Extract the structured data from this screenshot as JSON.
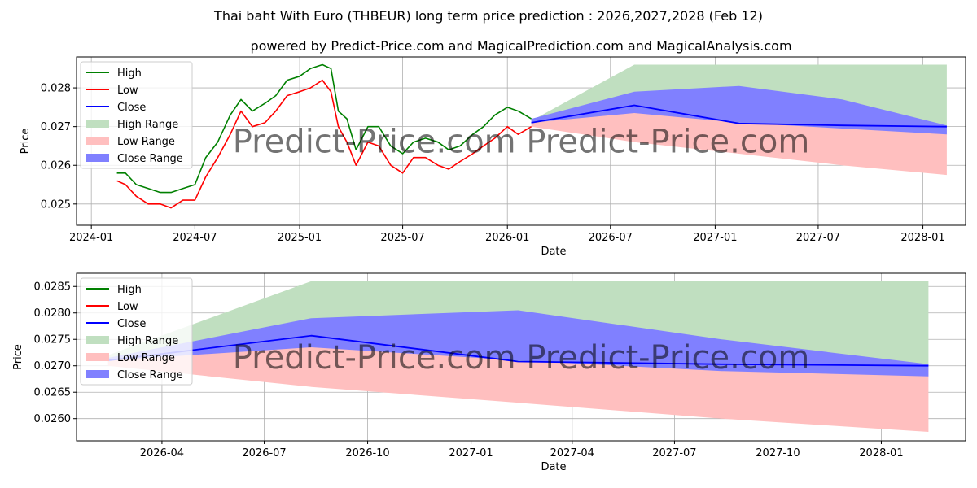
{
  "title": "Thai baht With Euro (THBEUR) long term price prediction : 2026,2027,2028 (Feb 12)",
  "subtitle": "powered by Predict-Price.com and MagicalPrediction.com and MagicalAnalysis.com",
  "watermark": "Predict-Price.com",
  "colors": {
    "high": "#008000",
    "low": "#ff0000",
    "close": "#0000ff",
    "high_range": "#c0dfc0",
    "low_range": "#ffbfbf",
    "close_range": "#8080ff"
  },
  "chart_data": [
    {
      "type": "line",
      "xlabel": "Date",
      "ylabel": "Price",
      "x_range": [
        "2023-12-06",
        "2028-03-16"
      ],
      "ylim": [
        0.02445,
        0.0288
      ],
      "xticks": [
        "2024-01",
        "2024-07",
        "2025-01",
        "2025-07",
        "2026-01",
        "2026-07",
        "2027-01",
        "2027-07",
        "2028-01"
      ],
      "yticks": [
        0.025,
        0.026,
        0.027,
        0.028
      ],
      "grid": true,
      "legend_position": "top-left",
      "legend": [
        "High",
        "Low",
        "Close",
        "High Range",
        "Low Range",
        "Close Range"
      ],
      "history_dates": [
        "2024-02-15",
        "2024-03-01",
        "2024-03-20",
        "2024-04-10",
        "2024-05-01",
        "2024-05-20",
        "2024-06-10",
        "2024-07-01",
        "2024-07-20",
        "2024-08-10",
        "2024-09-01",
        "2024-09-20",
        "2024-10-10",
        "2024-11-01",
        "2024-11-20",
        "2024-12-10",
        "2025-01-01",
        "2025-01-20",
        "2025-02-10",
        "2025-02-25",
        "2025-03-10",
        "2025-03-25",
        "2025-04-10",
        "2025-05-01",
        "2025-05-20",
        "2025-06-10",
        "2025-07-01",
        "2025-07-20",
        "2025-08-10",
        "2025-09-01",
        "2025-09-20",
        "2025-10-10",
        "2025-11-01",
        "2025-11-20",
        "2025-12-10",
        "2026-01-01",
        "2026-01-20",
        "2026-02-12"
      ],
      "history_high": [
        0.0258,
        0.0258,
        0.0255,
        0.0254,
        0.0253,
        0.0253,
        0.0254,
        0.0255,
        0.0262,
        0.0266,
        0.0273,
        0.0277,
        0.0274,
        0.0276,
        0.0278,
        0.0282,
        0.0283,
        0.0285,
        0.0286,
        0.0285,
        0.0274,
        0.0272,
        0.0264,
        0.027,
        0.027,
        0.0265,
        0.0263,
        0.0266,
        0.0267,
        0.0266,
        0.0264,
        0.0265,
        0.0268,
        0.027,
        0.0273,
        0.0275,
        0.0274,
        0.0272
      ],
      "history_low": [
        0.0256,
        0.0255,
        0.0252,
        0.025,
        0.025,
        0.0249,
        0.0251,
        0.0251,
        0.0257,
        0.0262,
        0.0268,
        0.0274,
        0.027,
        0.0271,
        0.0274,
        0.0278,
        0.0279,
        0.028,
        0.0282,
        0.0279,
        0.027,
        0.0266,
        0.026,
        0.0266,
        0.0265,
        0.026,
        0.0258,
        0.0262,
        0.0262,
        0.026,
        0.0259,
        0.0261,
        0.0263,
        0.0265,
        0.0267,
        0.027,
        0.0268,
        0.027
      ],
      "forecast_dates": [
        "2026-02-12",
        "2026-08-12",
        "2027-02-12",
        "2027-08-12",
        "2028-02-12"
      ],
      "forecast_close": [
        0.0271,
        0.02755,
        0.02708,
        0.02703,
        0.027
      ],
      "high_range_upper": [
        0.02715,
        0.0286,
        0.0286,
        0.0286,
        0.0286
      ],
      "close_range_upper": [
        0.0272,
        0.0279,
        0.02805,
        0.0277,
        0.02703
      ],
      "close_range_lower": [
        0.0271,
        0.02735,
        0.0271,
        0.02695,
        0.0268
      ],
      "low_range_lower": [
        0.027,
        0.0266,
        0.0263,
        0.026,
        0.02575
      ]
    },
    {
      "type": "line",
      "xlabel": "Date",
      "ylabel": "Price",
      "x_range": [
        "2026-01-15",
        "2028-03-16"
      ],
      "ylim": [
        0.02558,
        0.02875
      ],
      "xticks": [
        "2026-04",
        "2026-07",
        "2026-10",
        "2027-01",
        "2027-04",
        "2027-07",
        "2027-10",
        "2028-01"
      ],
      "yticks": [
        0.026,
        0.0265,
        0.027,
        0.0275,
        0.028,
        0.0285
      ],
      "grid": true,
      "legend_position": "top-left",
      "legend": [
        "High",
        "Low",
        "Close",
        "High Range",
        "Low Range",
        "Close Range"
      ],
      "forecast_dates": [
        "2026-02-12",
        "2026-08-12",
        "2027-02-12",
        "2027-08-12",
        "2028-02-12"
      ],
      "forecast_close": [
        0.0271,
        0.02757,
        0.02708,
        0.02703,
        0.027
      ],
      "high_range_upper": [
        0.0272,
        0.0286,
        0.0286,
        0.0286,
        0.0286
      ],
      "close_range_upper": [
        0.02715,
        0.0279,
        0.02805,
        0.0275,
        0.02703
      ],
      "close_range_lower": [
        0.0271,
        0.02735,
        0.0271,
        0.0269,
        0.0268
      ],
      "low_range_lower": [
        0.027,
        0.0266,
        0.0263,
        0.026,
        0.02575
      ]
    }
  ]
}
